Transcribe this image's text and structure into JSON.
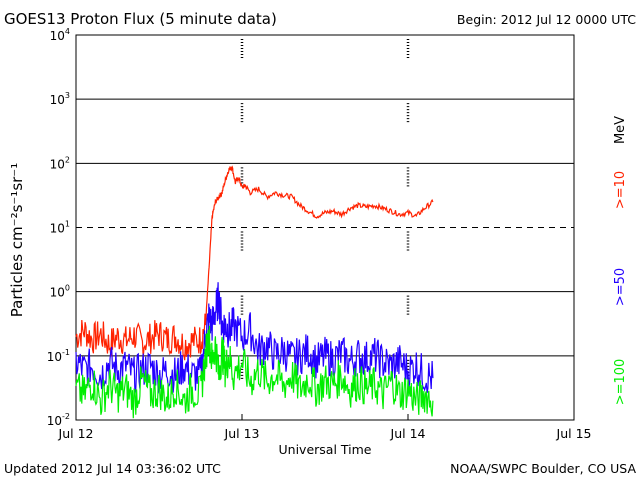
{
  "header": {
    "title": "GOES13 Proton Flux (5 minute data)",
    "begin": "Begin:  2012 Jul 12  0000 UTC"
  },
  "footer": {
    "updated": "Updated 2012 Jul 14 03:36:02 UTC",
    "credit": "NOAA/SWPC Boulder, CO USA"
  },
  "chart_data": {
    "type": "line",
    "title": "GOES13 Proton Flux (5 minute data)",
    "xlabel": "Universal Time",
    "ylabel": "Particles cm⁻²s⁻¹sr⁻¹",
    "unit_label": "MeV",
    "y_scale": "log",
    "ylim_exponents": [
      -2,
      4
    ],
    "y_ticks": [
      {
        "base": "10",
        "exp": "4"
      },
      {
        "base": "10",
        "exp": "3"
      },
      {
        "base": "10",
        "exp": "2"
      },
      {
        "base": "10",
        "exp": "1"
      },
      {
        "base": "10",
        "exp": "0"
      },
      {
        "base": "10",
        "exp": "-1"
      },
      {
        "base": "10",
        "exp": "-2"
      }
    ],
    "x_tick_labels": [
      "Jul 12",
      "Jul 13",
      "Jul 14",
      "Jul 15"
    ],
    "xlim_days": [
      0,
      3
    ],
    "x_unit": "days since 2012 Jul 12 0000 UTC",
    "dashed_gridline_exponent": 1,
    "series": [
      {
        "name": ">=10",
        "color": "#ff2200",
        "x": [
          0.0,
          0.05,
          0.1,
          0.15,
          0.2,
          0.25,
          0.3,
          0.35,
          0.4,
          0.45,
          0.5,
          0.55,
          0.6,
          0.65,
          0.7,
          0.75,
          0.78,
          0.8,
          0.82,
          0.84,
          0.86,
          0.88,
          0.9,
          0.92,
          0.94,
          0.96,
          0.98,
          1.0,
          1.02,
          1.05,
          1.1,
          1.15,
          1.2,
          1.25,
          1.3,
          1.35,
          1.4,
          1.45,
          1.5,
          1.55,
          1.6,
          1.65,
          1.7,
          1.75,
          1.8,
          1.85,
          1.9,
          1.95,
          2.0,
          2.05,
          2.1,
          2.15
        ],
        "values": [
          0.2,
          0.25,
          0.18,
          0.22,
          0.15,
          0.2,
          0.17,
          0.21,
          0.16,
          0.19,
          0.22,
          0.18,
          0.2,
          0.15,
          0.17,
          0.18,
          0.3,
          2.0,
          15,
          25,
          30,
          35,
          55,
          80,
          88,
          50,
          60,
          42,
          45,
          35,
          40,
          30,
          35,
          32,
          30,
          22,
          18,
          15,
          17,
          18,
          16,
          20,
          22,
          21,
          22,
          20,
          18,
          16,
          17,
          15,
          20,
          25
        ]
      },
      {
        "name": ">=50",
        "color": "#2200ff",
        "x": [
          0.0,
          0.05,
          0.1,
          0.15,
          0.2,
          0.25,
          0.3,
          0.35,
          0.4,
          0.45,
          0.5,
          0.55,
          0.6,
          0.65,
          0.7,
          0.75,
          0.78,
          0.8,
          0.82,
          0.84,
          0.86,
          0.88,
          0.9,
          0.92,
          0.95,
          1.0,
          1.05,
          1.1,
          1.15,
          1.2,
          1.25,
          1.3,
          1.35,
          1.4,
          1.45,
          1.5,
          1.55,
          1.6,
          1.65,
          1.7,
          1.75,
          1.8,
          1.85,
          1.9,
          1.95,
          2.0,
          2.05,
          2.1,
          2.15
        ],
        "values": [
          0.08,
          0.06,
          0.07,
          0.05,
          0.08,
          0.06,
          0.07,
          0.05,
          0.06,
          0.07,
          0.05,
          0.06,
          0.05,
          0.07,
          0.05,
          0.05,
          0.2,
          0.4,
          0.3,
          0.5,
          0.8,
          0.3,
          0.3,
          0.25,
          0.3,
          0.2,
          0.25,
          0.12,
          0.15,
          0.1,
          0.12,
          0.09,
          0.1,
          0.12,
          0.08,
          0.1,
          0.09,
          0.11,
          0.08,
          0.1,
          0.09,
          0.1,
          0.08,
          0.07,
          0.08,
          0.06,
          0.07,
          0.05,
          0.045
        ]
      },
      {
        "name": ">=100",
        "color": "#00ee00",
        "x": [
          0.0,
          0.05,
          0.1,
          0.15,
          0.2,
          0.25,
          0.3,
          0.35,
          0.4,
          0.45,
          0.5,
          0.55,
          0.6,
          0.65,
          0.7,
          0.75,
          0.78,
          0.8,
          0.82,
          0.84,
          0.86,
          0.88,
          0.9,
          0.92,
          0.95,
          1.0,
          1.05,
          1.1,
          1.15,
          1.2,
          1.25,
          1.3,
          1.35,
          1.4,
          1.45,
          1.5,
          1.55,
          1.6,
          1.65,
          1.7,
          1.75,
          1.8,
          1.85,
          1.9,
          1.95,
          2.0,
          2.05,
          2.1,
          2.15
        ],
        "values": [
          0.03,
          0.025,
          0.04,
          0.02,
          0.035,
          0.025,
          0.03,
          0.02,
          0.04,
          0.025,
          0.03,
          0.02,
          0.035,
          0.02,
          0.03,
          0.025,
          0.1,
          0.2,
          0.08,
          0.15,
          0.05,
          0.12,
          0.06,
          0.1,
          0.05,
          0.08,
          0.04,
          0.06,
          0.04,
          0.05,
          0.035,
          0.05,
          0.03,
          0.045,
          0.03,
          0.04,
          0.035,
          0.05,
          0.03,
          0.04,
          0.03,
          0.035,
          0.025,
          0.04,
          0.025,
          0.03,
          0.02,
          0.025,
          0.02
        ]
      }
    ],
    "right_labels": [
      {
        "text": ">=10",
        "color": "#ff2200"
      },
      {
        "text": ">=50",
        "color": "#2200ff"
      },
      {
        "text": ">=100",
        "color": "#00ee00"
      }
    ]
  }
}
